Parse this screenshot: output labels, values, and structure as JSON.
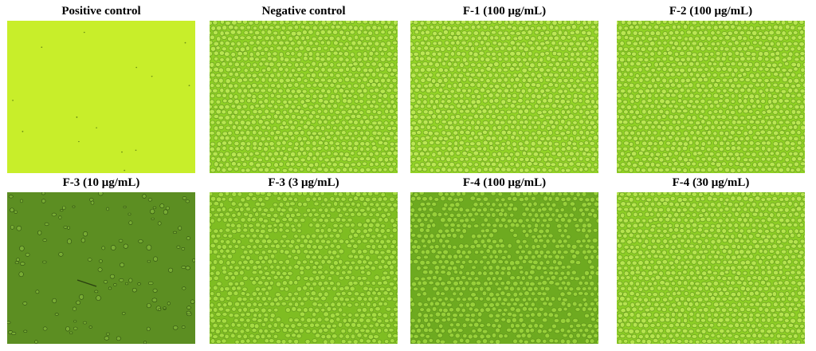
{
  "panels": [
    {
      "title": "Positive control",
      "style": "sparse-bright",
      "bg": "#c8ee2a",
      "cell": "#9cc81a",
      "density": 0.02
    },
    {
      "title": "Negative control",
      "style": "dense",
      "bg": "#8ecf25",
      "cell": "#b8e650",
      "density": 1.0
    },
    {
      "title": "F-1 (100 μg/mL)",
      "style": "dense",
      "bg": "#92d226",
      "cell": "#bce754",
      "density": 1.0
    },
    {
      "title": "F-2 (100 μg/mL)",
      "style": "dense",
      "bg": "#8fd024",
      "cell": "#bae652",
      "density": 1.0
    },
    {
      "title": "F-3 (10 μg/mL)",
      "style": "sparse-dark",
      "bg": "#5c8e22",
      "cell": "#7fb43a",
      "density": 0.12
    },
    {
      "title": "F-3 (3 μg/mL)",
      "style": "dense",
      "bg": "#7fbd22",
      "cell": "#a6dc42",
      "density": 0.9
    },
    {
      "title": "F-4 (100 μg/mL)",
      "style": "dense",
      "bg": "#6eaa20",
      "cell": "#98d03a",
      "density": 0.85
    },
    {
      "title": "F-4 (30 μg/mL)",
      "style": "dense",
      "bg": "#8ccd25",
      "cell": "#b6e44f",
      "density": 1.0
    }
  ]
}
